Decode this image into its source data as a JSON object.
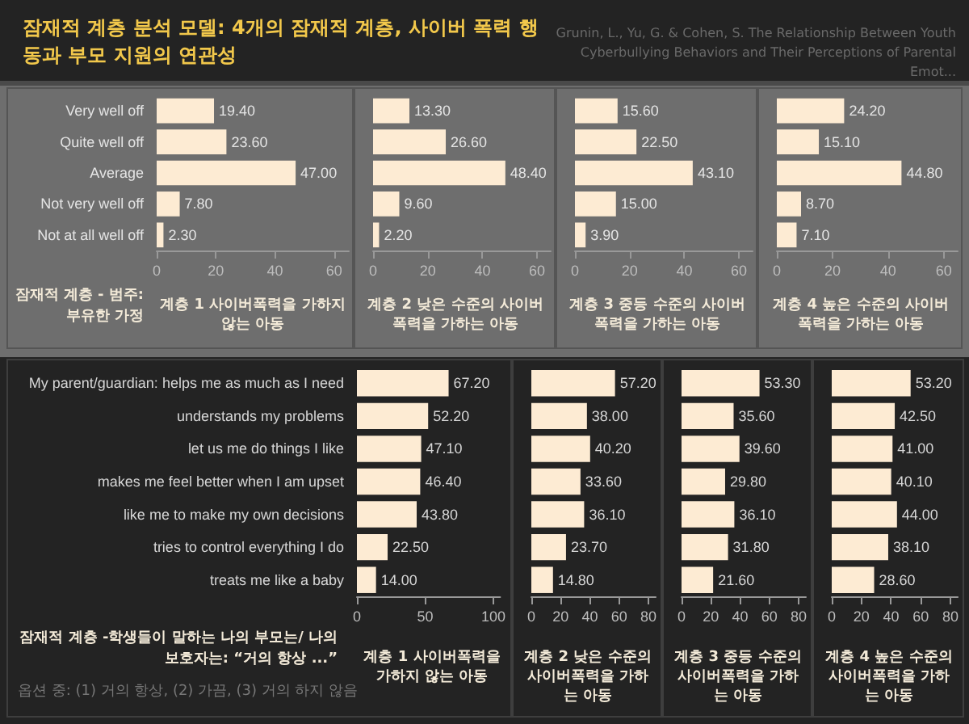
{
  "chart_data": [
    {
      "type": "bar",
      "orientation": "horizontal",
      "title": "잠재적 계층 분석 모델: 4개의 잠재적 계층, 사이버 폭력 행동과 부모 지원의 연관성",
      "annotations": [
        "Grunin, L., Yu, G. & Cohen, S. The Relationship Between Youth Cyberbullying Behaviors and Their Perceptions of Parental Emot..."
      ],
      "ylabel": "잠재적 계층 - 범주: 부유한 가정",
      "xlabel": "계층 1 사이버폭력을 가하지 않는 아동",
      "categories": [
        "Very well off",
        "Quite well off",
        "Average",
        "Not very well off",
        "Not at all well off"
      ],
      "values": [
        19.4,
        23.6,
        47.0,
        7.8,
        2.3
      ],
      "value_labels": [
        "19.40",
        "23.60",
        "47.00",
        "7.80",
        "2.30"
      ],
      "color": "#fdebd3",
      "xlim": [
        0,
        65
      ],
      "xticks": [
        0,
        20,
        40,
        60
      ]
    },
    {
      "type": "bar",
      "orientation": "horizontal",
      "xlabel": "계층 2 낮은 수준의 사이버폭력을 가하는 아동",
      "categories": [
        null,
        null,
        null,
        null,
        null
      ],
      "values": [
        13.3,
        26.6,
        48.4,
        9.6,
        2.2
      ],
      "value_labels": [
        "13.30",
        "26.60",
        "48.40",
        "9.60",
        "2.20"
      ],
      "color": "#fdebd3",
      "xlim": [
        0,
        65
      ],
      "xticks": [
        0,
        20,
        40,
        60
      ]
    },
    {
      "type": "bar",
      "orientation": "horizontal",
      "xlabel": "계층 3 중등 수준의 사이버폭력을 가하는 아동",
      "categories": [
        null,
        null,
        null,
        null,
        null
      ],
      "values": [
        15.6,
        22.5,
        43.1,
        15.0,
        3.9
      ],
      "value_labels": [
        "15.60",
        "22.50",
        "43.10",
        "15.00",
        "3.90"
      ],
      "color": "#fdebd3",
      "xlim": [
        0,
        65
      ],
      "xticks": [
        0,
        20,
        40,
        60
      ]
    },
    {
      "type": "bar",
      "orientation": "horizontal",
      "xlabel": "계층 4 높은 수준의 사이버폭력을 가하는 아동",
      "categories": [
        null,
        null,
        null,
        null,
        null
      ],
      "values": [
        24.2,
        15.1,
        44.8,
        8.7,
        7.1
      ],
      "value_labels": [
        "24.20",
        "15.10",
        "44.80",
        "8.70",
        "7.10"
      ],
      "color": "#fdebd3",
      "xlim": [
        0,
        65
      ],
      "xticks": [
        0,
        20,
        40,
        60
      ]
    },
    {
      "type": "bar",
      "orientation": "horizontal",
      "ylabel": "잠재적 계층 -학생들이 말하는 나의 부모는/ 나의 보호자는: “거의 항상 ...”",
      "annotations": [
        "옵션 중: (1) 거의 항상, (2) 가끔, (3) 거의 하지 않음"
      ],
      "xlabel": "계층 1 사이버폭력을 가하지 않는 아동",
      "categories": [
        "My parent/guardian: helps me as much as I need",
        "understands my problems",
        "let us me do things I like",
        "makes me feel better when I am upset",
        "like me to make my own decisions",
        "tries to control everything I do",
        "treats me like a baby"
      ],
      "values": [
        67.2,
        52.2,
        47.1,
        46.4,
        43.8,
        22.5,
        14.0
      ],
      "value_labels": [
        "67.20",
        "52.20",
        "47.10",
        "46.40",
        "43.80",
        "22.50",
        "14.00"
      ],
      "color": "#fdebd3",
      "xlim": [
        0,
        105
      ],
      "xticks": [
        0,
        50,
        100
      ]
    },
    {
      "type": "bar",
      "orientation": "horizontal",
      "xlabel": "계층 2 낮은 수준의 사이버폭력을 가하는 아동",
      "categories": [
        null,
        null,
        null,
        null,
        null,
        null,
        null
      ],
      "values": [
        57.2,
        38.0,
        40.2,
        33.6,
        36.1,
        23.7,
        14.8
      ],
      "value_labels": [
        "57.20",
        "38.00",
        "40.20",
        "33.60",
        "36.10",
        "23.70",
        "14.80"
      ],
      "color": "#fdebd3",
      "xlim": [
        0,
        85
      ],
      "xticks": [
        0,
        20,
        40,
        60,
        80
      ]
    },
    {
      "type": "bar",
      "orientation": "horizontal",
      "xlabel": "계층 3 중등 수준의 사이버폭력을 가하는 아동",
      "categories": [
        null,
        null,
        null,
        null,
        null,
        null,
        null
      ],
      "values": [
        53.3,
        35.6,
        39.6,
        29.8,
        36.1,
        31.8,
        21.6
      ],
      "value_labels": [
        "53.30",
        "35.60",
        "39.60",
        "29.80",
        "36.10",
        "31.80",
        "21.60"
      ],
      "color": "#fdebd3",
      "xlim": [
        0,
        85
      ],
      "xticks": [
        0,
        20,
        40,
        60,
        80
      ]
    },
    {
      "type": "bar",
      "orientation": "horizontal",
      "xlabel": "계층 4 높은 수준의 사이버폭력을 가하는 아동",
      "categories": [
        null,
        null,
        null,
        null,
        null,
        null,
        null
      ],
      "values": [
        53.2,
        42.5,
        41.0,
        40.1,
        44.0,
        38.1,
        28.6
      ],
      "value_labels": [
        "53.20",
        "42.50",
        "41.00",
        "40.10",
        "44.00",
        "38.10",
        "28.60"
      ],
      "color": "#fdebd3",
      "xlim": [
        0,
        85
      ],
      "xticks": [
        0,
        20,
        40,
        60,
        80
      ]
    }
  ]
}
